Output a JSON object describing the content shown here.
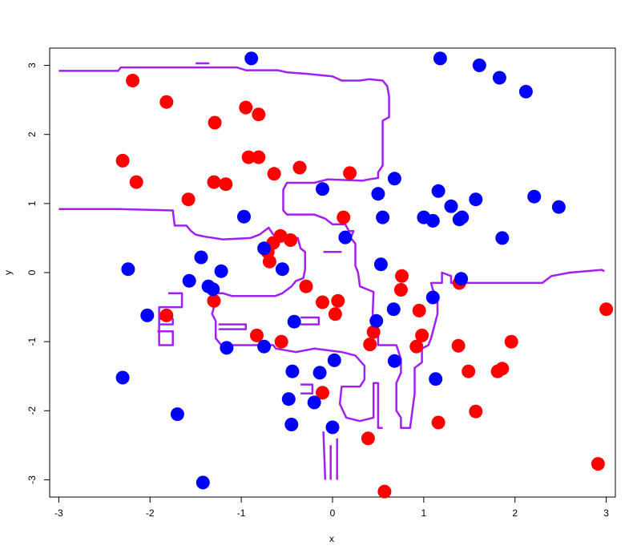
{
  "chart_data": {
    "type": "scatter",
    "title": "",
    "xlabel": "x",
    "ylabel": "y",
    "xlim": [
      -3.1,
      3.1
    ],
    "ylim": [
      -3.25,
      3.25
    ],
    "x_ticks": [
      -3,
      -2,
      -1,
      0,
      1,
      2,
      3
    ],
    "y_ticks": [
      -3,
      -2,
      -1,
      0,
      1,
      2,
      3
    ],
    "grid": false,
    "legend": "none",
    "colors": {
      "red": "#ff0000",
      "blue": "#0000ff",
      "boundary": "#a020f0"
    },
    "series": [
      {
        "color": "#ff0000",
        "points": [
          [
            -2.19,
            2.78
          ],
          [
            -1.82,
            2.47
          ],
          [
            -0.95,
            2.39
          ],
          [
            -0.81,
            2.29
          ],
          [
            -1.29,
            2.17
          ],
          [
            -2.3,
            1.62
          ],
          [
            -0.92,
            1.67
          ],
          [
            -0.81,
            1.67
          ],
          [
            -2.15,
            1.31
          ],
          [
            -1.3,
            1.31
          ],
          [
            -1.17,
            1.28
          ],
          [
            -0.64,
            1.43
          ],
          [
            -0.36,
            1.52
          ],
          [
            0.19,
            1.44
          ],
          [
            -1.58,
            1.06
          ],
          [
            0.12,
            0.8
          ],
          [
            -0.57,
            0.53
          ],
          [
            -0.46,
            0.47
          ],
          [
            -0.65,
            0.43
          ],
          [
            -0.71,
            0.3
          ],
          [
            -0.69,
            0.16
          ],
          [
            -0.29,
            -0.2
          ],
          [
            0.76,
            -0.05
          ],
          [
            0.75,
            -0.25
          ],
          [
            1.39,
            -0.15
          ],
          [
            3.0,
            -0.53
          ],
          [
            -1.3,
            -0.41
          ],
          [
            -0.11,
            -0.43
          ],
          [
            0.06,
            -0.41
          ],
          [
            -1.82,
            -0.62
          ],
          [
            0.03,
            -0.6
          ],
          [
            0.95,
            -0.55
          ],
          [
            0.45,
            -0.86
          ],
          [
            -0.83,
            -0.91
          ],
          [
            -0.56,
            -1.0
          ],
          [
            0.98,
            -0.91
          ],
          [
            0.41,
            -1.04
          ],
          [
            0.92,
            -1.07
          ],
          [
            1.38,
            -1.06
          ],
          [
            1.96,
            -1.0
          ],
          [
            1.49,
            -1.43
          ],
          [
            1.81,
            -1.43
          ],
          [
            1.86,
            -1.39
          ],
          [
            -0.11,
            -1.74
          ],
          [
            1.57,
            -2.01
          ],
          [
            1.16,
            -2.17
          ],
          [
            0.39,
            -2.4
          ],
          [
            2.91,
            -2.77
          ],
          [
            0.57,
            -3.17
          ]
        ]
      },
      {
        "color": "#0000ff",
        "points": [
          [
            -0.89,
            3.1
          ],
          [
            1.18,
            3.1
          ],
          [
            1.61,
            3.0
          ],
          [
            1.83,
            2.82
          ],
          [
            2.12,
            2.62
          ],
          [
            -0.11,
            1.21
          ],
          [
            0.68,
            1.36
          ],
          [
            0.5,
            1.14
          ],
          [
            1.16,
            1.18
          ],
          [
            1.57,
            1.06
          ],
          [
            2.21,
            1.1
          ],
          [
            2.48,
            0.95
          ],
          [
            1.3,
            0.96
          ],
          [
            1.0,
            0.8
          ],
          [
            1.1,
            0.75
          ],
          [
            1.39,
            0.77
          ],
          [
            1.42,
            0.8
          ],
          [
            0.55,
            0.8
          ],
          [
            -0.97,
            0.81
          ],
          [
            1.86,
            0.5
          ],
          [
            0.14,
            0.51
          ],
          [
            -0.75,
            0.35
          ],
          [
            -0.55,
            0.05
          ],
          [
            -2.24,
            0.05
          ],
          [
            -1.44,
            0.22
          ],
          [
            -1.22,
            0.02
          ],
          [
            -1.57,
            -0.12
          ],
          [
            -1.36,
            -0.2
          ],
          [
            -1.31,
            -0.24
          ],
          [
            0.53,
            0.12
          ],
          [
            1.41,
            -0.09
          ],
          [
            1.1,
            -0.36
          ],
          [
            0.67,
            -0.53
          ],
          [
            -2.03,
            -0.62
          ],
          [
            -0.42,
            -0.71
          ],
          [
            0.48,
            -0.7
          ],
          [
            -1.16,
            -1.09
          ],
          [
            -0.75,
            -1.07
          ],
          [
            0.02,
            -1.27
          ],
          [
            0.68,
            -1.28
          ],
          [
            -0.44,
            -1.43
          ],
          [
            -0.14,
            -1.45
          ],
          [
            1.13,
            -1.54
          ],
          [
            -2.3,
            -1.52
          ],
          [
            -0.48,
            -1.83
          ],
          [
            -0.2,
            -1.88
          ],
          [
            -1.7,
            -2.05
          ],
          [
            -0.45,
            -2.2
          ],
          [
            0.0,
            -2.24
          ],
          [
            -1.42,
            -3.04
          ]
        ]
      }
    ],
    "decision_boundary": [
      [
        [
          -3.0,
          2.92
        ],
        [
          -2.35,
          2.92
        ],
        [
          -2.32,
          2.97
        ],
        [
          -1.05,
          2.97
        ],
        [
          -0.95,
          2.93
        ],
        [
          -0.6,
          2.93
        ],
        [
          -0.5,
          2.9
        ],
        [
          -0.3,
          2.88
        ],
        [
          0.0,
          2.84
        ],
        [
          0.1,
          2.78
        ],
        [
          0.3,
          2.78
        ],
        [
          0.4,
          2.8
        ],
        [
          0.55,
          2.78
        ],
        [
          0.6,
          2.7
        ],
        [
          0.62,
          2.55
        ],
        [
          0.62,
          2.25
        ],
        [
          0.55,
          2.2
        ],
        [
          0.55,
          1.55
        ],
        [
          0.5,
          1.45
        ],
        [
          0.5,
          1.37
        ],
        [
          0.4,
          1.35
        ],
        [
          0.33,
          1.33
        ],
        [
          -0.05,
          1.35
        ],
        [
          -0.2,
          1.3
        ],
        [
          -0.5,
          1.3
        ],
        [
          -0.54,
          1.2
        ],
        [
          -0.54,
          0.9
        ],
        [
          -0.5,
          0.84
        ],
        [
          -0.2,
          0.84
        ],
        [
          -0.08,
          0.78
        ],
        [
          0.0,
          0.7
        ],
        [
          0.14,
          0.7
        ],
        [
          0.18,
          0.6
        ],
        [
          0.23,
          0.6
        ],
        [
          0.2,
          0.5
        ],
        [
          0.25,
          0.42
        ],
        [
          0.25,
          0.1
        ],
        [
          0.28,
          0.0
        ],
        [
          0.3,
          -0.2
        ],
        [
          0.45,
          -0.28
        ],
        [
          0.44,
          -0.6
        ],
        [
          0.46,
          -0.78
        ],
        [
          0.5,
          -0.85
        ],
        [
          0.5,
          -1.05
        ],
        [
          0.7,
          -1.05
        ],
        [
          0.75,
          -1.25
        ],
        [
          0.75,
          -1.45
        ],
        [
          0.7,
          -1.6
        ],
        [
          0.7,
          -2.0
        ],
        [
          0.75,
          -2.1
        ],
        [
          0.75,
          -2.25
        ],
        [
          0.85,
          -2.25
        ],
        [
          0.9,
          -1.75
        ],
        [
          0.9,
          -1.38
        ],
        [
          0.98,
          -1.3
        ],
        [
          0.98,
          -1.1
        ],
        [
          1.05,
          -1.05
        ],
        [
          1.08,
          -0.95
        ],
        [
          1.15,
          -0.6
        ],
        [
          1.15,
          -0.35
        ],
        [
          1.1,
          -0.25
        ],
        [
          1.08,
          -0.15
        ],
        [
          1.2,
          -0.15
        ],
        [
          1.2,
          0.0
        ],
        [
          1.3,
          -0.05
        ],
        [
          1.3,
          -0.15
        ],
        [
          2.0,
          -0.15
        ],
        [
          2.3,
          -0.15
        ],
        [
          2.4,
          -0.05
        ],
        [
          2.6,
          0.0
        ],
        [
          2.95,
          0.04
        ],
        [
          2.98,
          0.02
        ]
      ],
      [
        [
          -3.0,
          0.92
        ],
        [
          -2.35,
          0.92
        ],
        [
          -1.75,
          0.9
        ],
        [
          -1.73,
          0.68
        ],
        [
          -1.6,
          0.68
        ],
        [
          -1.55,
          0.6
        ],
        [
          -1.5,
          0.55
        ],
        [
          -1.4,
          0.52
        ],
        [
          -1.2,
          0.48
        ],
        [
          -0.9,
          0.5
        ],
        [
          -0.8,
          0.55
        ],
        [
          -0.7,
          0.65
        ],
        [
          -0.65,
          0.55
        ],
        [
          -0.55,
          0.5
        ],
        [
          -0.38,
          0.5
        ],
        [
          -0.35,
          0.35
        ],
        [
          -0.3,
          0.3
        ],
        [
          -0.3,
          0.05
        ],
        [
          -0.32,
          -0.08
        ],
        [
          -0.4,
          -0.12
        ],
        [
          -0.45,
          -0.2
        ],
        [
          -0.55,
          -0.3
        ],
        [
          -0.63,
          -0.34
        ],
        [
          -1.1,
          -0.34
        ],
        [
          -1.2,
          -0.3
        ],
        [
          -1.28,
          -0.3
        ],
        [
          -1.3,
          -0.5
        ],
        [
          -1.32,
          -0.6
        ],
        [
          -1.28,
          -0.7
        ],
        [
          -1.28,
          -0.95
        ],
        [
          -1.22,
          -1.05
        ],
        [
          -0.65,
          -1.05
        ],
        [
          -0.62,
          -1.1
        ],
        [
          -0.4,
          -1.15
        ],
        [
          -0.2,
          -1.1
        ],
        [
          0.1,
          -1.15
        ],
        [
          0.25,
          -1.2
        ],
        [
          0.35,
          -1.35
        ],
        [
          0.35,
          -1.55
        ],
        [
          0.3,
          -1.65
        ],
        [
          0.1,
          -1.65
        ],
        [
          0.08,
          -1.9
        ],
        [
          0.15,
          -2.1
        ],
        [
          0.3,
          -2.15
        ],
        [
          0.45,
          -2.1
        ],
        [
          0.45,
          -1.6
        ],
        [
          0.5,
          -1.6
        ],
        [
          0.5,
          -2.25
        ],
        [
          0.55,
          -2.25
        ]
      ],
      [
        [
          -1.8,
          -0.3
        ],
        [
          -1.65,
          -0.3
        ],
        [
          -1.65,
          -0.5
        ],
        [
          -1.9,
          -0.5
        ],
        [
          -1.9,
          -1.05
        ],
        [
          -1.75,
          -1.05
        ],
        [
          -1.75,
          -0.85
        ],
        [
          -1.92,
          -0.85
        ]
      ],
      [
        [
          -1.25,
          -0.75
        ],
        [
          -0.95,
          -0.75
        ],
        [
          -0.95,
          -0.82
        ],
        [
          -1.25,
          -0.82
        ]
      ],
      [
        [
          -0.35,
          -0.65
        ],
        [
          -0.15,
          -0.65
        ],
        [
          -0.15,
          -0.75
        ],
        [
          -0.35,
          -0.75
        ]
      ],
      [
        [
          -0.1,
          -2.3
        ],
        [
          -0.08,
          -3.0
        ]
      ],
      [
        [
          -0.02,
          -2.5
        ],
        [
          -0.02,
          -3.0
        ]
      ],
      [
        [
          0.05,
          -2.4
        ],
        [
          0.05,
          -3.0
        ]
      ],
      [
        [
          -0.35,
          -1.62
        ],
        [
          -0.22,
          -1.62
        ],
        [
          -0.22,
          -1.75
        ],
        [
          -0.35,
          -1.75
        ]
      ],
      [
        [
          -1.9,
          -0.75
        ],
        [
          -1.75,
          -0.75
        ],
        [
          -1.75,
          -0.67
        ],
        [
          -1.9,
          -0.67
        ]
      ],
      [
        [
          -1.5,
          3.03
        ],
        [
          -1.35,
          3.03
        ]
      ],
      [
        [
          -0.1,
          0.3
        ],
        [
          0.1,
          0.3
        ]
      ]
    ]
  }
}
